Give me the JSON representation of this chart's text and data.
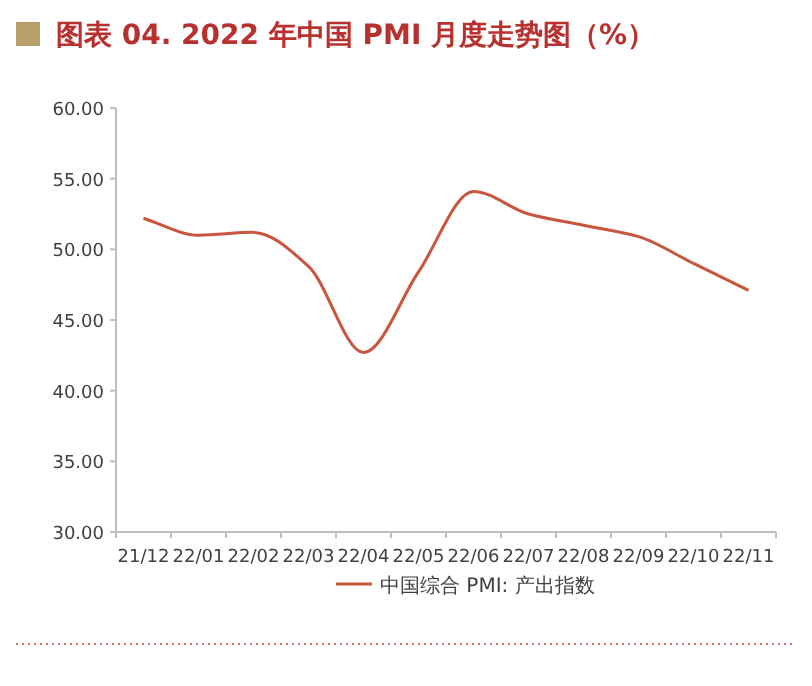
{
  "chart_data": {
    "type": "line",
    "title": "图表 04. 2022 年中国 PMI 月度走势图（%）",
    "categories": [
      "21/12",
      "22/01",
      "22/02",
      "22/03",
      "22/04",
      "22/05",
      "22/06",
      "22/07",
      "22/08",
      "22/09",
      "22/10",
      "22/11"
    ],
    "series": [
      {
        "name": "中国综合 PMI: 产出指数",
        "color": "#c8553d",
        "values": [
          52.2,
          51.0,
          51.2,
          48.8,
          42.7,
          48.4,
          54.1,
          52.5,
          51.7,
          50.9,
          49.0,
          47.1
        ]
      }
    ],
    "ylim": [
      30,
      60
    ],
    "yticks": [
      {
        "value": 30,
        "label": "30.00"
      },
      {
        "value": 35,
        "label": "35.00"
      },
      {
        "value": 40,
        "label": "40.00"
      },
      {
        "value": 45,
        "label": "45.00"
      },
      {
        "value": 50,
        "label": "50.00"
      },
      {
        "value": 55,
        "label": "55.00"
      },
      {
        "value": 60,
        "label": "60.00"
      }
    ],
    "grid": false,
    "legend": "bottom",
    "marker": "none",
    "line_style": "solid"
  }
}
